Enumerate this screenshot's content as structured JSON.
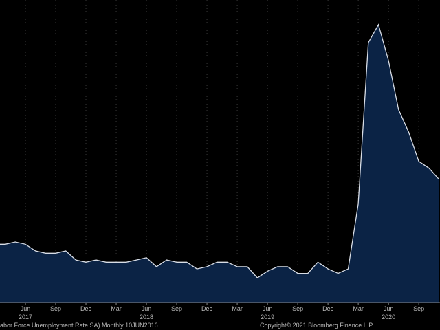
{
  "chart_data": {
    "type": "area",
    "categories": [
      null,
      null,
      null,
      "Jun",
      null,
      null,
      "Sep",
      null,
      null,
      "Dec",
      null,
      null,
      "Mar",
      null,
      null,
      "Jun",
      null,
      null,
      "Sep",
      null,
      null,
      "Dec",
      null,
      null,
      "Mar",
      null,
      null,
      "Jun",
      null,
      null,
      "Sep",
      null,
      null,
      "Dec",
      null,
      null,
      "Mar",
      null,
      null,
      "Jun",
      null,
      null,
      "Sep",
      null,
      null
    ],
    "year_labels": [
      "2017",
      "2018",
      "2019",
      "2020"
    ],
    "values": [
      4.9,
      4.9,
      5.0,
      4.9,
      4.6,
      4.5,
      4.5,
      4.6,
      4.2,
      4.1,
      4.2,
      4.1,
      4.1,
      4.1,
      4.2,
      4.3,
      3.9,
      4.2,
      4.1,
      4.1,
      3.8,
      3.9,
      4.1,
      4.1,
      3.9,
      3.9,
      3.4,
      3.7,
      3.9,
      3.9,
      3.6,
      3.6,
      4.1,
      3.8,
      3.6,
      3.8,
      6.7,
      13.9,
      14.7,
      13.1,
      10.9,
      9.9,
      8.6,
      8.3,
      7.8
    ],
    "color": "#0b2345",
    "line_color": "#d8dde6",
    "ylim": [
      2.3,
      15.8
    ],
    "source_note": "abor Force Unemployment Rate SA)  Monthly 10JUN2016",
    "copyright": "Copyright© 2021 Bloomberg Finance L.P."
  }
}
